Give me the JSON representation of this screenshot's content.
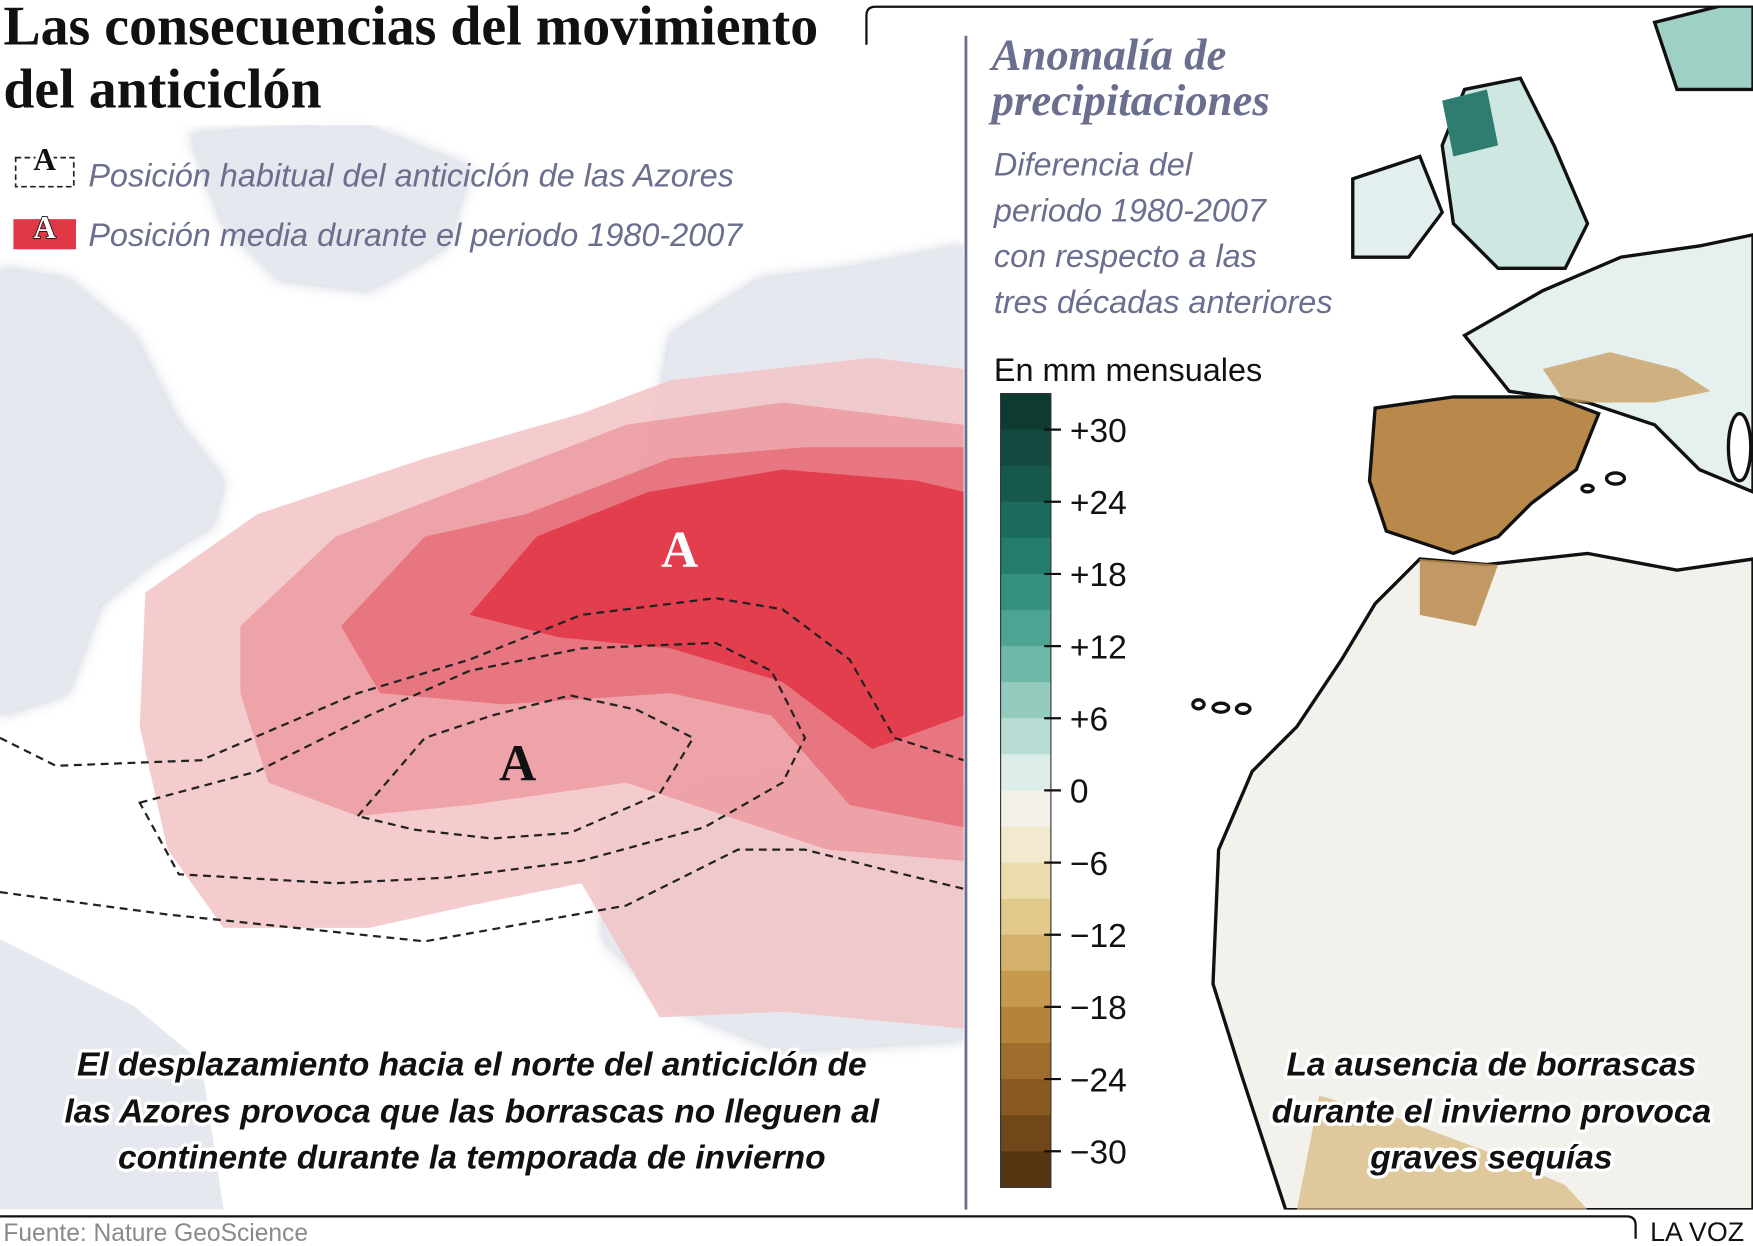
{
  "header": {
    "title_lines": [
      "Las consecuencias del movimiento",
      "del anticiclón"
    ]
  },
  "legend": [
    {
      "symbol": "A",
      "label": "Posición habitual del anticiclón de las Azores"
    },
    {
      "symbol": "A",
      "label": "Posición media durante el periodo 1980-2007"
    }
  ],
  "map_left": {
    "labels": [
      "A",
      "A"
    ],
    "caption_lines": [
      "El desplazamiento hacia el norte del anticiclón de",
      "las Azores provoca que las borrascas no lleguen al",
      "continente durante la temporada de invierno"
    ]
  },
  "map_right": {
    "title_lines": [
      "Anomalía de",
      "precipitaciones"
    ],
    "subtitle_lines": [
      "Diferencia del",
      "periodo 1980-2007",
      "con respecto a las",
      "tres décadas anteriores"
    ],
    "unit": "En mm mensuales",
    "colorbar": {
      "lim": [
        -33,
        33
      ],
      "ticks": [
        {
          "value": 30,
          "label": "+30"
        },
        {
          "value": 24,
          "label": "+24"
        },
        {
          "value": 18,
          "label": "+18"
        },
        {
          "value": 12,
          "label": "+12"
        },
        {
          "value": 6,
          "label": "+6"
        },
        0,
        {
          "value": -6,
          "label": "−6"
        },
        {
          "value": -12,
          "label": "−12"
        },
        {
          "value": -18,
          "label": "−18"
        },
        {
          "value": -24,
          "label": "−24"
        },
        {
          "value": -30,
          "label": "−30"
        }
      ],
      "colors": [
        "#0e3a31",
        "#124a3f",
        "#16594c",
        "#1b6b5c",
        "#247c6c",
        "#34907f",
        "#4ea493",
        "#6db8a8",
        "#93cbbe",
        "#b9ddd5",
        "#dcedea",
        "#f3f1ea",
        "#f2e9cf",
        "#ebdcae",
        "#e0c98b",
        "#d4b16a",
        "#c6994d",
        "#b5843a",
        "#9f6e2c",
        "#885a22",
        "#6f4719",
        "#563612"
      ]
    },
    "caption_lines": [
      "La ausencia de borrascas",
      "durante el invierno provoca",
      "graves sequías"
    ]
  },
  "footer": {
    "source": "Fuente: Nature GeoScience",
    "brand": "LA VOZ"
  }
}
